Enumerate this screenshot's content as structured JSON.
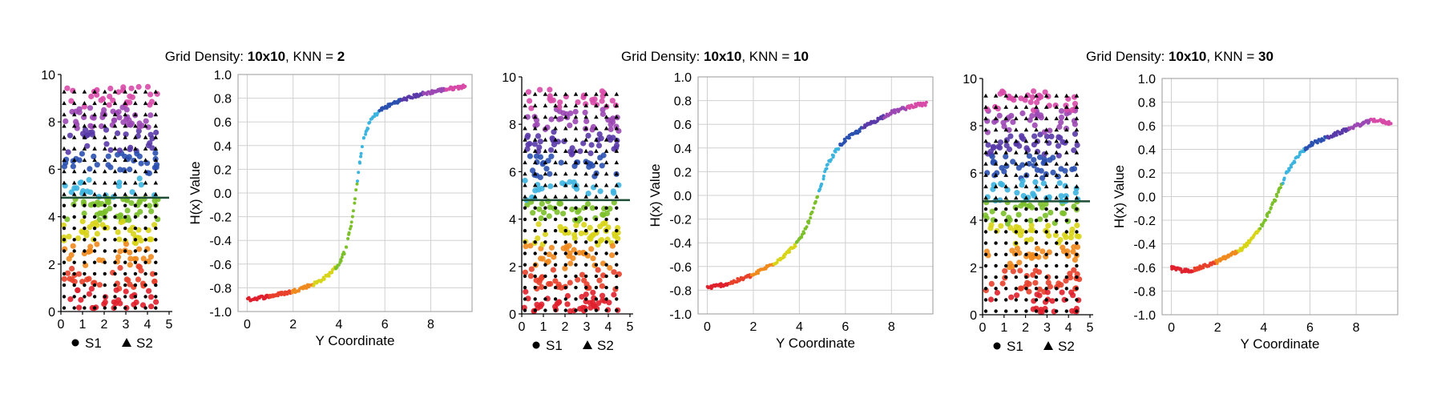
{
  "chart_data": [
    {
      "type": "scatter",
      "title_prefix": "Grid Density: ",
      "grid_label": "10x10",
      "title_sep": ", KNN = ",
      "knn": "2",
      "left": {
        "xlim": [
          0,
          5
        ],
        "ylim": [
          0,
          10
        ],
        "xticks": [
          0,
          1,
          2,
          3,
          4,
          5
        ],
        "yticks": [
          0,
          2,
          4,
          6,
          8,
          10
        ],
        "boundary_y": 4.8
      },
      "right": {
        "xlabel": "Y Coordinate",
        "ylabel": "H(x) Value",
        "xlim": [
          -0.4,
          9.8
        ],
        "ylim": [
          -1.0,
          1.0
        ],
        "xticks": [
          0,
          2,
          4,
          6,
          8
        ],
        "yticks": [
          "1.0",
          "0.8",
          "0.6",
          "0.4",
          "0.2",
          "0.0",
          "-0.2",
          "-0.4",
          "-0.6",
          "-0.8",
          "-1.0"
        ],
        "curve": {
          "y": [
            0.0,
            1.0,
            2.0,
            3.0,
            3.5,
            4.0,
            4.3,
            4.5,
            4.7,
            4.9,
            5.1,
            5.4,
            5.8,
            6.5,
            7.5,
            8.5,
            9.5
          ],
          "h": [
            -0.9,
            -0.87,
            -0.83,
            -0.76,
            -0.7,
            -0.6,
            -0.47,
            -0.3,
            -0.05,
            0.25,
            0.48,
            0.62,
            0.7,
            0.77,
            0.83,
            0.87,
            0.9
          ]
        }
      },
      "grid_grey": false
    },
    {
      "type": "scatter",
      "title_prefix": "Grid Density: ",
      "grid_label": "10x10",
      "title_sep": ", KNN = ",
      "knn": "10",
      "left": {
        "xlim": [
          0,
          5
        ],
        "ylim": [
          0,
          10
        ],
        "xticks": [
          0,
          1,
          2,
          3,
          4,
          5
        ],
        "yticks": [
          0,
          2,
          4,
          6,
          8,
          10
        ],
        "boundary_y": 4.8
      },
      "right": {
        "xlabel": "Y Coordinate",
        "ylabel": "H(x) Value",
        "xlim": [
          -0.4,
          9.8
        ],
        "ylim": [
          -1.0,
          1.0
        ],
        "xticks": [
          0,
          2,
          4,
          6,
          8
        ],
        "yticks": [
          "1.0",
          "0.8",
          "0.6",
          "0.4",
          "0.2",
          "0.0",
          "-0.2",
          "-0.4",
          "-0.6",
          "-0.8",
          "-1.0"
        ],
        "curve": {
          "y": [
            0.0,
            1.0,
            2.0,
            3.0,
            3.5,
            4.0,
            4.3,
            4.6,
            4.9,
            5.2,
            5.6,
            6.0,
            7.0,
            8.0,
            9.0,
            9.5
          ],
          "h": [
            -0.78,
            -0.74,
            -0.67,
            -0.56,
            -0.48,
            -0.38,
            -0.27,
            -0.12,
            0.05,
            0.25,
            0.38,
            0.47,
            0.6,
            0.7,
            0.76,
            0.77
          ]
        }
      },
      "grid_grey": false
    },
    {
      "type": "scatter",
      "title_prefix": "Grid Density: ",
      "grid_label": "10x10",
      "title_sep": ", KNN = ",
      "knn": "30",
      "left": {
        "xlim": [
          0,
          5
        ],
        "ylim": [
          0,
          10
        ],
        "xticks": [
          0,
          1,
          2,
          3,
          4,
          5
        ],
        "yticks": [
          0,
          2,
          4,
          6,
          8,
          10
        ],
        "boundary_y": 4.8
      },
      "right": {
        "xlabel": "Y Coordinate",
        "ylabel": "H(x) Value",
        "xlim": [
          -0.4,
          9.8
        ],
        "ylim": [
          -1.0,
          1.0
        ],
        "xticks": [
          0,
          2,
          4,
          6,
          8
        ],
        "yticks": [
          "1.0",
          "0.8",
          "0.6",
          "0.4",
          "0.2",
          "0.0",
          "-0.2",
          "-0.4",
          "-0.6",
          "-0.8",
          "-1.0"
        ],
        "curve": {
          "y": [
            0.0,
            0.5,
            1.0,
            2.0,
            3.0,
            3.5,
            4.0,
            4.5,
            5.0,
            5.5,
            6.0,
            7.0,
            8.0,
            8.8,
            9.5
          ],
          "h": [
            -0.6,
            -0.63,
            -0.62,
            -0.55,
            -0.45,
            -0.36,
            -0.22,
            -0.02,
            0.2,
            0.35,
            0.44,
            0.52,
            0.6,
            0.65,
            0.62
          ]
        }
      },
      "grid_grey": false
    }
  ],
  "legend": {
    "s1": "S1",
    "s2": "S2"
  },
  "colors": {
    "palette": [
      "#e0202c",
      "#e8402a",
      "#f08a1e",
      "#d8d418",
      "#7cc02a",
      "#3cb4e0",
      "#2a50b0",
      "#5a3aa8",
      "#9c48b4",
      "#d84aa8"
    ],
    "marker": "#000000",
    "boundary": "#1d4d35",
    "axis": "#000000",
    "grid": "#d0d0d0"
  }
}
